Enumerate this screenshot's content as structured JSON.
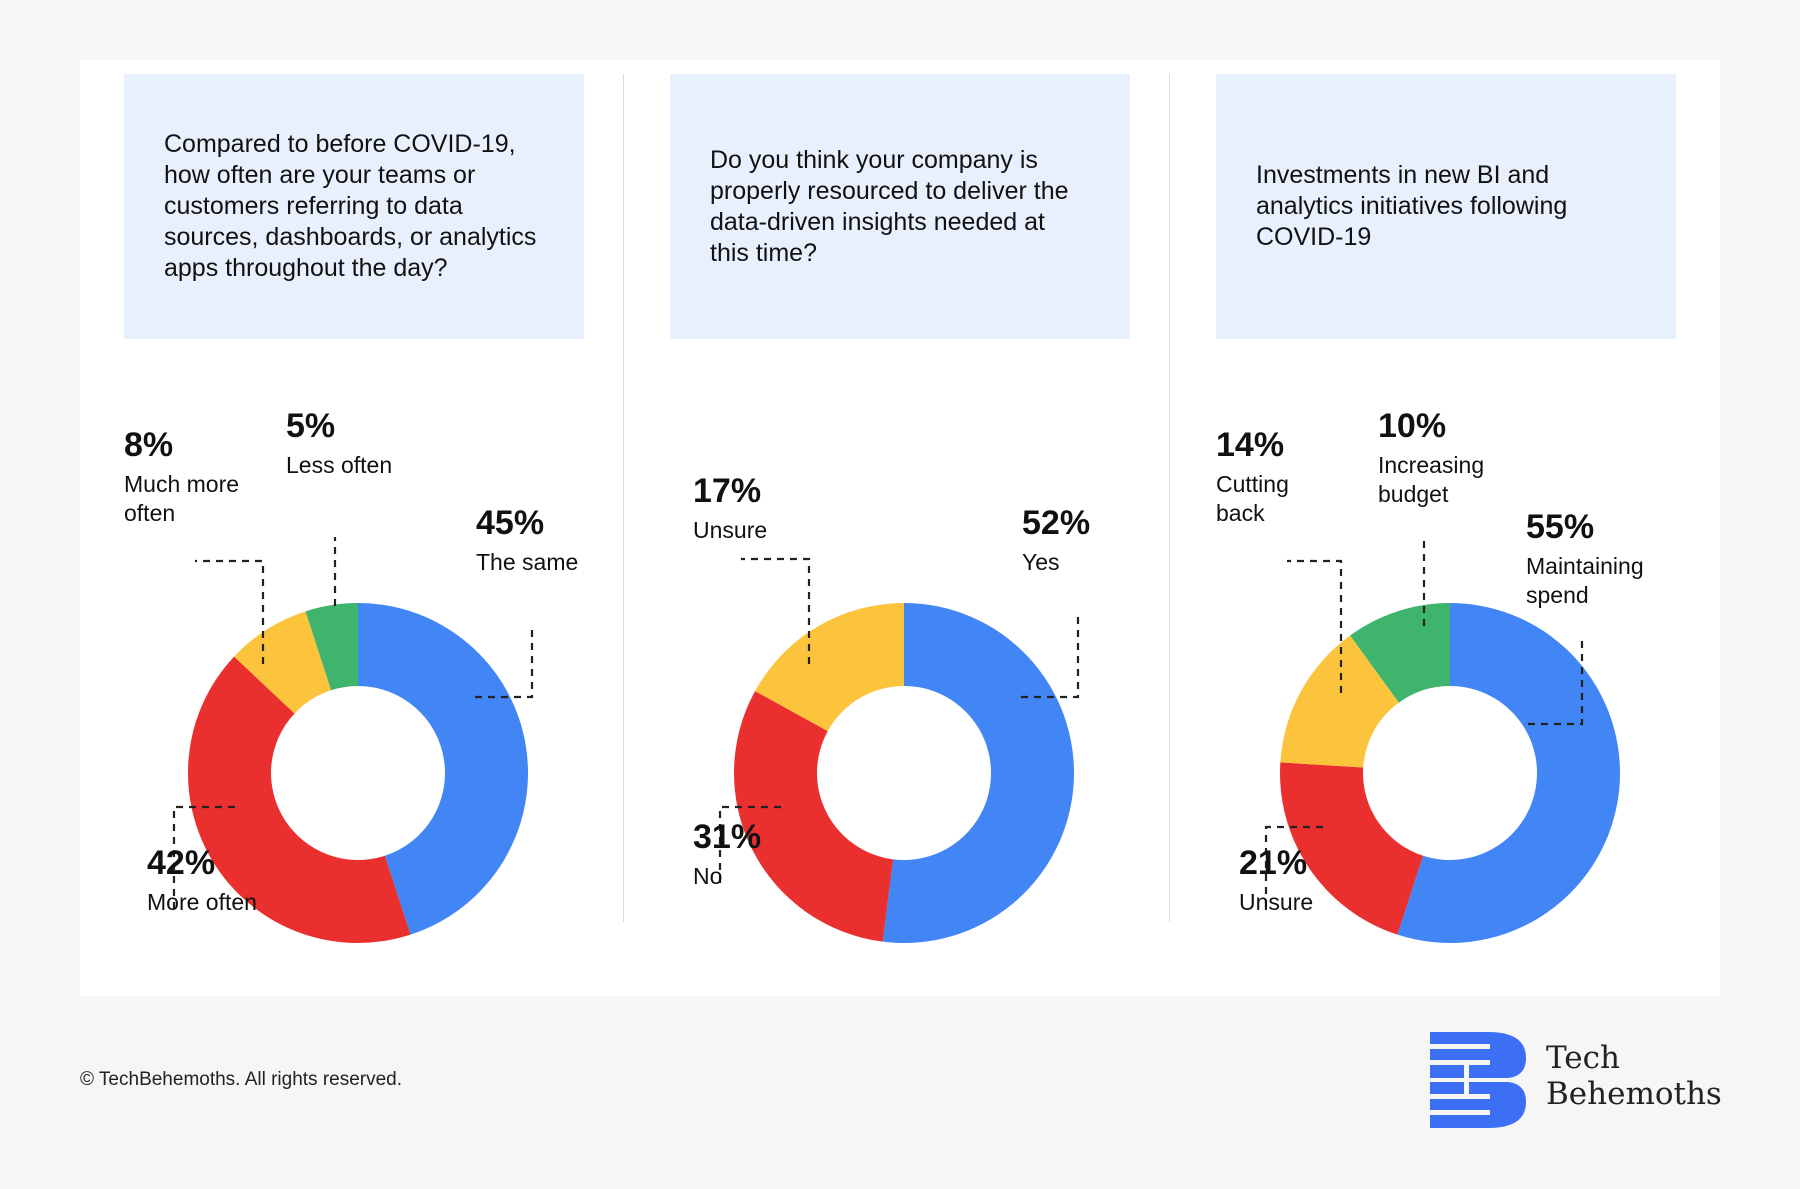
{
  "chart_data": [
    {
      "type": "pie",
      "title": "Compared to before COVID-19, how often are your teams or customers referring to data sources, dashboards, or analytics apps throughout the day?",
      "slices": [
        {
          "label": "The same",
          "value": 45,
          "display": "45%",
          "color": "#4285f4"
        },
        {
          "label": "More often",
          "value": 42,
          "display": "42%",
          "color": "#ea2f2f"
        },
        {
          "label": "Much more often",
          "value": 8,
          "display": "8%",
          "color": "#fbc43c"
        },
        {
          "label": "Less often",
          "value": 5,
          "display": "5%",
          "color": "#3fb46d"
        }
      ]
    },
    {
      "type": "pie",
      "title": "Do you think your company is properly resourced to deliver the data-driven insights needed at this time?",
      "slices": [
        {
          "label": "Yes",
          "value": 52,
          "display": "52%",
          "color": "#4285f4"
        },
        {
          "label": "No",
          "value": 31,
          "display": "31%",
          "color": "#ea2f2f"
        },
        {
          "label": "Unsure",
          "value": 17,
          "display": "17%",
          "color": "#fbc43c"
        }
      ]
    },
    {
      "type": "pie",
      "title": "Investments in new BI and analytics initiatives following COVID-19",
      "slices": [
        {
          "label": "Maintaining spend",
          "value": 55,
          "display": "55%",
          "color": "#4285f4"
        },
        {
          "label": "Unsure",
          "value": 21,
          "display": "21%",
          "color": "#ea2f2f"
        },
        {
          "label": "Cutting back",
          "value": 14,
          "display": "14%",
          "color": "#fbc43c"
        },
        {
          "label": "Increasing budget",
          "value": 10,
          "display": "10%",
          "color": "#3fb46d"
        }
      ]
    }
  ],
  "footer": {
    "copyright": "© TechBehemoths. All rights reserved."
  },
  "logo": {
    "line1": "Tech",
    "line2": "Behemoths",
    "color": "#3d6ff5"
  }
}
